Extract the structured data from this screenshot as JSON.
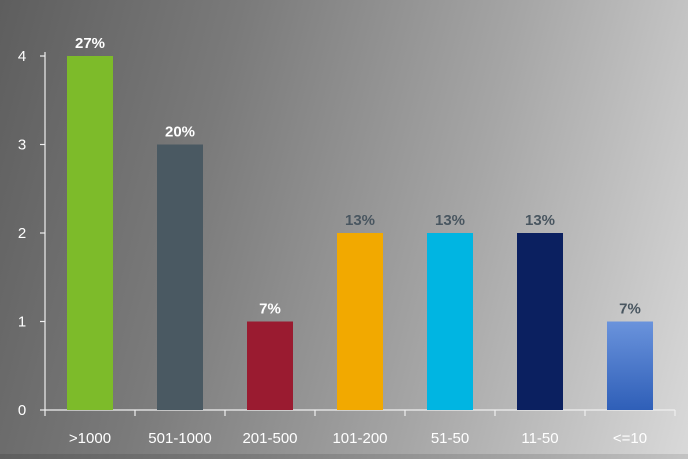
{
  "chart_data": {
    "type": "bar",
    "title": "",
    "xlabel": "",
    "ylabel": "",
    "ylim": [
      0,
      4
    ],
    "yticks": [
      "0",
      "1",
      "2",
      "3",
      "4"
    ],
    "grid": false,
    "legend": "none",
    "categories": [
      ">1000",
      "501-1000",
      "201-500",
      "101-200",
      "51-50",
      "11-50",
      "<=10"
    ],
    "values": [
      4,
      3,
      1,
      2,
      2,
      2,
      1
    ],
    "data_labels": [
      "27%",
      "20%",
      "7%",
      "13%",
      "13%",
      "13%",
      "7%"
    ],
    "bar_colors": [
      "#7dbb2a",
      "#4a5962",
      "#9a1b30",
      "#f2a900",
      "#00b5e2",
      "#0b2060",
      "#4d79c9"
    ],
    "label_colors": [
      "#ffffff",
      "#ffffff",
      "#ffffff",
      "#495660",
      "#495660",
      "#495660",
      "#495660"
    ]
  }
}
